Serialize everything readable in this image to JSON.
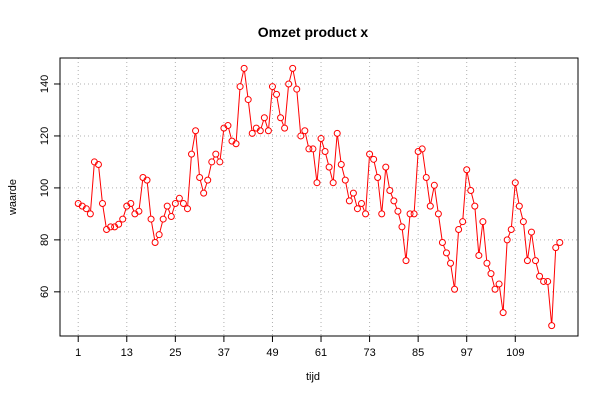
{
  "chart_data": {
    "type": "line",
    "title": "Omzet product x",
    "xlabel": "tijd",
    "ylabel": "waarde",
    "xlim": [
      -3.5,
      124.5
    ],
    "ylim": [
      43,
      150
    ],
    "x_ticks": [
      1,
      13,
      25,
      37,
      49,
      61,
      73,
      85,
      97,
      109
    ],
    "y_ticks": [
      60,
      80,
      100,
      120,
      140
    ],
    "grid": true,
    "series_color": "#ff0000",
    "series": [
      {
        "x": [
          1,
          2,
          3,
          4,
          5,
          6,
          7,
          8,
          9,
          10,
          11,
          12,
          13,
          14,
          15,
          16,
          17,
          18,
          19,
          20,
          21,
          22,
          23,
          24,
          25,
          26,
          27,
          28,
          29,
          30,
          31,
          32,
          33,
          34,
          35,
          36,
          37,
          38,
          39,
          40,
          41,
          42,
          43,
          44,
          45,
          46,
          47,
          48,
          49,
          50,
          51,
          52,
          53,
          54,
          55,
          56,
          57,
          58,
          59,
          60,
          61,
          62,
          63,
          64,
          65,
          66,
          67,
          68,
          69,
          70,
          71,
          72,
          73,
          74,
          75,
          76,
          77,
          78,
          79,
          80,
          81,
          82,
          83,
          84,
          85,
          86,
          87,
          88,
          89,
          90,
          91,
          92,
          93,
          94,
          95,
          96,
          97,
          98,
          99,
          100,
          101,
          102,
          103,
          104,
          105,
          106,
          107,
          108,
          109,
          110,
          111,
          112,
          113,
          114,
          115,
          116,
          117,
          118,
          119,
          120
        ],
        "values": [
          94,
          93,
          92,
          90,
          110,
          109,
          94,
          84,
          85,
          85,
          86,
          88,
          93,
          94,
          90,
          91,
          104,
          103,
          88,
          79,
          82,
          88,
          93,
          89,
          94,
          96,
          94,
          92,
          113,
          122,
          104,
          98,
          103,
          110,
          113,
          110,
          123,
          124,
          118,
          117,
          139,
          146,
          134,
          121,
          123,
          122,
          127,
          122,
          139,
          136,
          127,
          123,
          140,
          146,
          138,
          120,
          122,
          115,
          115,
          102,
          119,
          114,
          108,
          102,
          121,
          109,
          103,
          95,
          98,
          92,
          94,
          90,
          113,
          111,
          104,
          90,
          108,
          99,
          95,
          91,
          85,
          72,
          90,
          90,
          114,
          115,
          104,
          93,
          101,
          90,
          79,
          75,
          71,
          61,
          84,
          87,
          107,
          99,
          93,
          74,
          87,
          71,
          67,
          61,
          63,
          52,
          80,
          84,
          102,
          93,
          87,
          72,
          83,
          72,
          66,
          64,
          64,
          47,
          77,
          79
        ]
      }
    ]
  }
}
